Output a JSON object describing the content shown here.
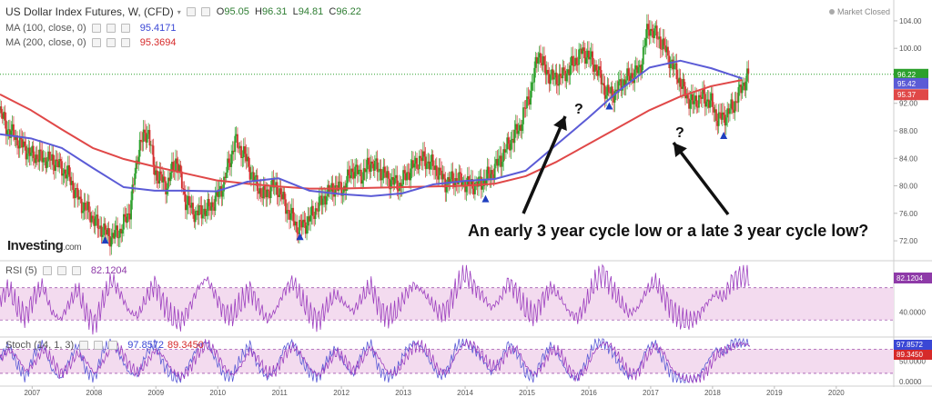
{
  "header": {
    "symbol": "US Dollar Index Futures, W, (CFD)",
    "open_label": "O",
    "open": "95.05",
    "high_label": "H",
    "high": "96.31",
    "low_label": "L",
    "low": "94.81",
    "close_label": "C",
    "close": "96.22",
    "ma100_label": "MA (100, close, 0)",
    "ma100_value": "95.4171",
    "ma200_label": "MA (200, close, 0)",
    "ma200_value": "95.3694",
    "rsi_label": "RSI (5)",
    "rsi_value": "82.1204",
    "stoch_label": "Stoch (14, 1, 3)",
    "stoch_k_value": "97.8572",
    "stoch_d_value": "89.3450",
    "market_status": "Market Closed"
  },
  "branding": {
    "name": "Investing",
    "suffix": ".com"
  },
  "annotation": {
    "text": "An early 3 year cycle low or a late 3 year cycle low?",
    "q1": "?",
    "q2": "?"
  },
  "colors": {
    "price_up": "#2ca02c",
    "price_down": "#d32f2f",
    "ma100": "#5b5bd6",
    "ma200": "#e04848",
    "oscillator": "#9c3fbf",
    "band_fill": "#f3dbef",
    "marker": "#1f3fbf",
    "last_price_line": "#2ca02c"
  },
  "chart_data": [
    {
      "type": "line",
      "title": "US Dollar Index Futures, W, (CFD)",
      "y_axis_ticks": [
        "104.00",
        "100.00",
        "96.00",
        "92.00",
        "88.00",
        "84.00",
        "80.00",
        "76.00",
        "72.00"
      ],
      "ylim": [
        69.5,
        106.5
      ],
      "xlim": [
        2006.5,
        2020.95
      ],
      "x_tick_labels": [
        "2007",
        "2008",
        "2009",
        "2010",
        "2011",
        "2012",
        "2013",
        "2014",
        "2015",
        "2016",
        "2017",
        "2018",
        "2019",
        "2020"
      ],
      "series": [
        {
          "name": "MA (100, close, 0)",
          "x": [
            2006.5,
            2007.0,
            2007.5,
            2008.0,
            2008.5,
            2009.0,
            2009.5,
            2010.0,
            2010.5,
            2011.0,
            2011.5,
            2012.0,
            2012.5,
            2013.0,
            2013.5,
            2014.0,
            2014.5,
            2015.0,
            2015.5,
            2016.0,
            2016.5,
            2017.0,
            2017.5,
            2018.0,
            2018.5
          ],
          "y": [
            87.5,
            86.9,
            85.5,
            82.6,
            79.8,
            79.3,
            79.3,
            79.2,
            80.6,
            81.1,
            79.3,
            78.8,
            78.5,
            78.9,
            80.2,
            80.7,
            81.0,
            82.2,
            86.0,
            89.8,
            93.8,
            97.2,
            98.2,
            97.1,
            95.6
          ]
        },
        {
          "name": "MA (200, close, 0)",
          "x": [
            2006.5,
            2007.0,
            2007.5,
            2008.0,
            2008.5,
            2009.0,
            2009.5,
            2010.0,
            2010.5,
            2011.0,
            2011.5,
            2012.0,
            2012.5,
            2013.0,
            2013.5,
            2014.0,
            2014.5,
            2015.0,
            2015.5,
            2016.0,
            2016.5,
            2017.0,
            2017.5,
            2018.0,
            2018.5
          ],
          "y": [
            93.3,
            91.0,
            88.2,
            85.5,
            83.9,
            82.8,
            81.8,
            80.8,
            80.3,
            79.9,
            79.6,
            79.6,
            79.7,
            79.8,
            79.9,
            80.0,
            80.3,
            81.4,
            83.5,
            86.0,
            88.5,
            91.0,
            93.0,
            94.5,
            95.4
          ]
        },
        {
          "name": "price",
          "x": [
            2006.5,
            2006.6,
            2006.8,
            2007.0,
            2007.2,
            2007.4,
            2007.6,
            2007.8,
            2007.95,
            2008.1,
            2008.3,
            2008.45,
            2008.6,
            2008.75,
            2008.9,
            2009.0,
            2009.2,
            2009.35,
            2009.5,
            2009.65,
            2009.85,
            2009.95,
            2010.1,
            2010.3,
            2010.45,
            2010.6,
            2010.75,
            2010.9,
            2011.0,
            2011.15,
            2011.3,
            2011.45,
            2011.6,
            2011.75,
            2011.9,
            2012.05,
            2012.2,
            2012.35,
            2012.5,
            2012.65,
            2012.8,
            2012.95,
            2013.1,
            2013.3,
            2013.5,
            2013.7,
            2013.9,
            2014.1,
            2014.3,
            2014.45,
            2014.6,
            2014.75,
            2014.9,
            2015.0,
            2015.1,
            2015.2,
            2015.3,
            2015.45,
            2015.6,
            2015.75,
            2015.9,
            2016.0,
            2016.15,
            2016.3,
            2016.45,
            2016.55,
            2016.7,
            2016.85,
            2016.95,
            2017.0,
            2017.15,
            2017.3,
            2017.45,
            2017.6,
            2017.7,
            2017.85,
            2018.0,
            2018.1,
            2018.2,
            2018.35,
            2018.5,
            2018.6
          ],
          "y": [
            91.0,
            88.5,
            86.5,
            84.5,
            84.0,
            83.5,
            81.5,
            77.5,
            76.0,
            74.0,
            72.5,
            73.5,
            76.5,
            86.0,
            88.0,
            82.0,
            80.0,
            84.0,
            77.8,
            76.0,
            76.5,
            77.5,
            80.0,
            86.5,
            84.5,
            81.0,
            78.5,
            80.0,
            79.5,
            76.5,
            74.0,
            74.5,
            76.5,
            78.5,
            79.8,
            79.5,
            82.5,
            81.5,
            83.5,
            82.0,
            81.0,
            80.0,
            82.0,
            84.0,
            83.0,
            80.5,
            81.0,
            80.0,
            80.5,
            82.0,
            84.0,
            86.5,
            88.5,
            91.5,
            94.5,
            99.5,
            97.0,
            95.5,
            96.0,
            97.5,
            99.5,
            99.0,
            97.0,
            93.5,
            93.5,
            95.0,
            96.0,
            97.0,
            102.0,
            103.0,
            101.5,
            99.0,
            96.0,
            93.0,
            92.0,
            93.0,
            92.0,
            89.8,
            90.0,
            91.5,
            94.5,
            96.22
          ]
        }
      ],
      "markers": [
        {
          "x": 2008.2,
          "y": 72.0
        },
        {
          "x": 2011.35,
          "y": 72.5
        },
        {
          "x": 2014.35,
          "y": 78.0
        },
        {
          "x": 2016.35,
          "y": 91.5
        },
        {
          "x": 2018.2,
          "y": 87.2
        }
      ],
      "last_labels": [
        {
          "name": "close",
          "value": "96.22"
        },
        {
          "name": "MA (100, close, 0)",
          "value": "95.42"
        },
        {
          "name": "MA (200, close, 0)",
          "value": "95.37"
        }
      ]
    },
    {
      "type": "line",
      "title": "RSI (5)",
      "y_axis_ticks": [
        "40.0000"
      ],
      "band": [
        30,
        70
      ],
      "ylim": [
        10,
        100
      ],
      "last_value": "82.1204",
      "series": [
        {
          "name": "RSI (5)",
          "y": [
            55,
            70,
            45,
            35,
            60,
            72,
            40,
            30,
            50,
            68,
            38,
            25,
            55,
            80,
            62,
            40,
            35,
            58,
            75,
            50,
            32,
            28,
            45,
            70,
            82,
            60,
            40,
            35,
            52,
            68,
            48,
            30,
            42,
            66,
            78,
            55,
            38,
            30,
            48,
            62,
            50,
            40,
            58,
            72,
            46,
            34,
            40,
            60,
            74,
            66,
            52,
            38,
            46,
            70,
            88,
            72,
            60,
            45,
            55,
            78,
            64,
            42,
            36,
            56,
            70,
            58,
            40,
            33,
            50,
            76,
            90,
            70,
            52,
            38,
            44,
            66,
            78,
            60,
            44,
            30,
            28,
            35,
            50,
            62,
            58,
            80,
            85,
            82
          ]
        }
      ]
    },
    {
      "type": "line",
      "title": "Stoch (14, 1, 3)",
      "y_axis_ticks": [
        "50.0000",
        "0.0000"
      ],
      "band": [
        20,
        80
      ],
      "ylim": [
        -5,
        108
      ],
      "last_values": [
        "97.8572",
        "89.3450"
      ],
      "series": [
        {
          "name": "%K",
          "y": [
            60,
            90,
            40,
            10,
            70,
            95,
            30,
            5,
            50,
            92,
            25,
            8,
            80,
            98,
            60,
            20,
            15,
            70,
            95,
            40,
            10,
            5,
            45,
            90,
            98,
            55,
            15,
            12,
            60,
            92,
            35,
            8,
            30,
            85,
            96,
            50,
            20,
            10,
            55,
            85,
            40,
            15,
            70,
            95,
            30,
            10,
            25,
            75,
            98,
            85,
            45,
            12,
            30,
            90,
            100,
            80,
            55,
            20,
            50,
            95,
            70,
            18,
            10,
            60,
            92,
            55,
            15,
            8,
            45,
            95,
            100,
            75,
            35,
            10,
            25,
            80,
            95,
            50,
            15,
            4,
            3,
            10,
            45,
            80,
            70,
            98,
            99,
            97.86
          ]
        },
        {
          "name": "%D",
          "y": [
            55,
            78,
            60,
            25,
            45,
            80,
            55,
            20,
            35,
            70,
            50,
            18,
            50,
            88,
            80,
            40,
            20,
            45,
            78,
            62,
            25,
            10,
            30,
            70,
            92,
            75,
            35,
            15,
            40,
            78,
            55,
            20,
            25,
            65,
            88,
            65,
            30,
            15,
            40,
            72,
            55,
            25,
            52,
            85,
            58,
            22,
            20,
            55,
            88,
            88,
            62,
            25,
            25,
            70,
            95,
            90,
            65,
            35,
            40,
            78,
            82,
            40,
            15,
            40,
            78,
            72,
            30,
            10,
            30,
            75,
            96,
            88,
            55,
            20,
            20,
            60,
            88,
            72,
            30,
            10,
            4,
            6,
            25,
            62,
            75,
            88,
            95,
            89.35
          ]
        }
      ]
    }
  ]
}
